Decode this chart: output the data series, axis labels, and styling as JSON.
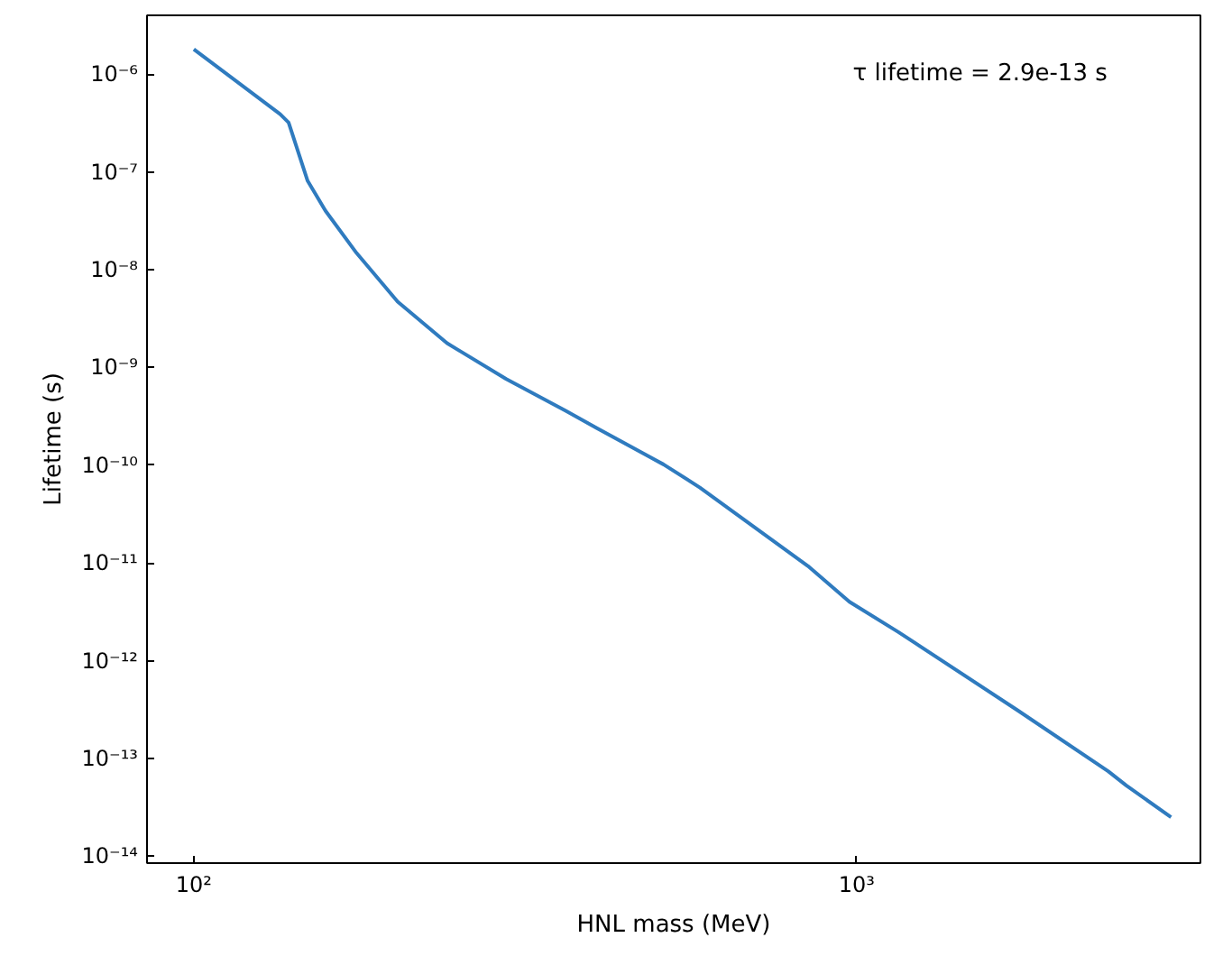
{
  "chart_data": {
    "type": "line",
    "xlabel": "HNL mass (MeV)",
    "ylabel": "Lifetime (s)",
    "log": "xy",
    "grid": false,
    "xlim": [
      85,
      3300
    ],
    "ylim": [
      8.5e-15,
      4e-06
    ],
    "xticks": [
      {
        "value": 100,
        "label": "10²"
      },
      {
        "value": 1000,
        "label": "10³"
      }
    ],
    "yticks": [
      {
        "value": 1e-14,
        "label": "10⁻¹⁴"
      },
      {
        "value": 1e-13,
        "label": "10⁻¹³"
      },
      {
        "value": 1e-12,
        "label": "10⁻¹²"
      },
      {
        "value": 1e-11,
        "label": "10⁻¹¹"
      },
      {
        "value": 1e-10,
        "label": "10⁻¹⁰"
      },
      {
        "value": 1e-09,
        "label": "10⁻⁹"
      },
      {
        "value": 1e-08,
        "label": "10⁻⁸"
      },
      {
        "value": 1e-07,
        "label": "10⁻⁷"
      },
      {
        "value": 1e-06,
        "label": "10⁻⁶"
      }
    ],
    "annotations": [
      "τ lifetime = 2.9e-13 s"
    ],
    "series": [
      {
        "color": "#2f7bbf",
        "x": [
          100,
          135,
          139,
          148.5,
          158,
          176,
          203,
          241,
          296,
          364,
          405,
          511,
          580,
          844,
          975,
          1156,
          1750,
          2395,
          2550,
          2980
        ],
        "values": [
          1.8e-06,
          3.9e-07,
          3.2e-07,
          8.1e-08,
          4e-08,
          1.48e-08,
          4.7e-09,
          1.77e-09,
          7.6e-10,
          3.6e-10,
          2.4e-10,
          1.02e-10,
          5.9e-11,
          9.3e-12,
          4e-12,
          1.96e-12,
          3.1e-13,
          7.4e-14,
          5.3e-14,
          2.5e-14
        ]
      }
    ]
  }
}
